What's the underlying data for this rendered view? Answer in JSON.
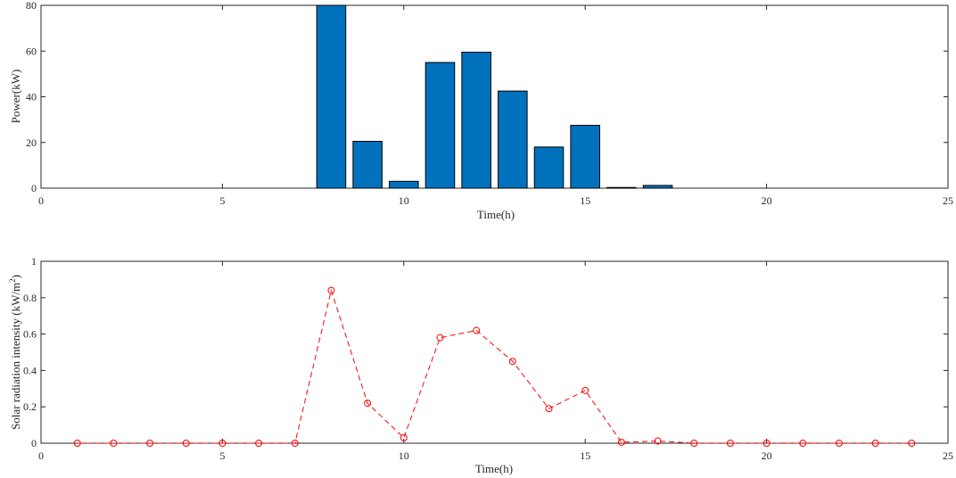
{
  "chart_data": [
    {
      "type": "bar",
      "xlabel": "Time(h)",
      "ylabel": "Power(kW)",
      "xlim": [
        0,
        25
      ],
      "ylim": [
        0,
        80
      ],
      "xticks": [
        0,
        5,
        10,
        15,
        20,
        25
      ],
      "yticks": [
        0,
        20,
        40,
        60,
        80
      ],
      "x": [
        8,
        9,
        10,
        11,
        12,
        13,
        14,
        15,
        16,
        17
      ],
      "values": [
        80,
        20.5,
        3,
        55,
        59.5,
        42.5,
        18,
        27.5,
        0.3,
        1.2
      ],
      "bar_color": "#0072BD",
      "grid": false
    },
    {
      "type": "line",
      "xlabel": "Time(h)",
      "ylabel_main": "Solar radiation intensity (kW/m",
      "ylabel_sup": "2",
      "ylabel_end": ")",
      "xlim": [
        0,
        25
      ],
      "ylim": [
        0,
        1
      ],
      "xticks": [
        0,
        5,
        10,
        15,
        20,
        25
      ],
      "yticks": [
        0,
        0.2,
        0.4,
        0.6,
        0.8,
        1
      ],
      "x": [
        1,
        2,
        3,
        4,
        5,
        6,
        7,
        8,
        9,
        10,
        11,
        12,
        13,
        14,
        15,
        16,
        17,
        18,
        19,
        20,
        21,
        22,
        23,
        24
      ],
      "y": [
        0,
        0,
        0,
        0,
        0,
        0,
        0,
        0.84,
        0.22,
        0.03,
        0.58,
        0.62,
        0.45,
        0.19,
        0.29,
        0.005,
        0.012,
        0,
        0,
        0,
        0,
        0,
        0,
        0
      ],
      "line_style": "dashed",
      "marker": "circle",
      "line_color": "#FF0000",
      "grid": false
    }
  ]
}
